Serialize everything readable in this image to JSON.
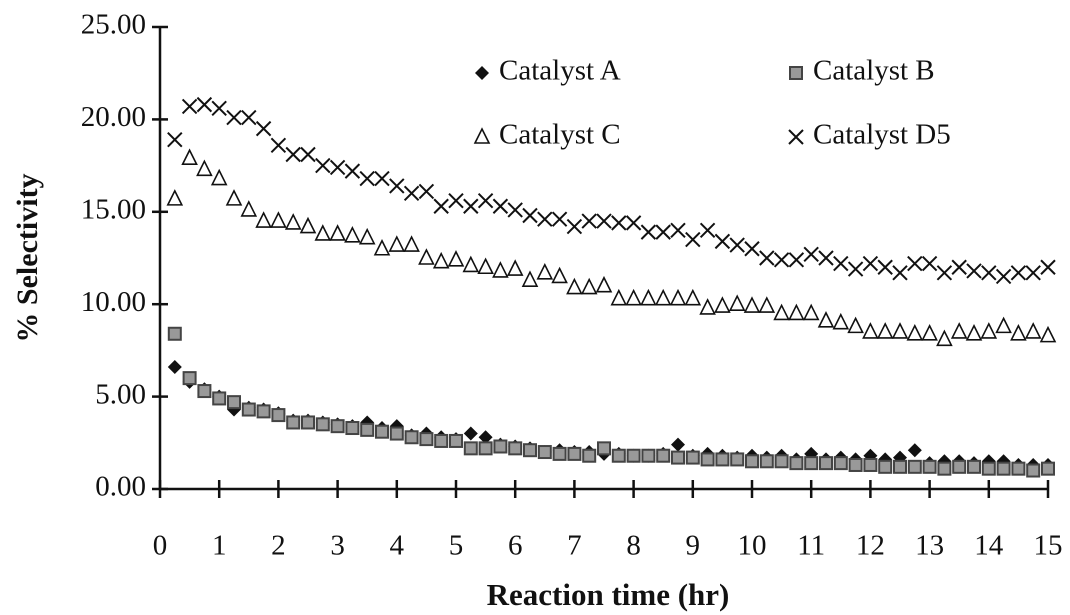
{
  "chart_data": {
    "type": "scatter",
    "x_label": "Reaction time (hr)",
    "y_label": "% Selectivity",
    "x": [
      0.25,
      0.5,
      0.75,
      1,
      1.25,
      1.5,
      1.75,
      2,
      2.25,
      2.5,
      2.75,
      3,
      3.25,
      3.5,
      3.75,
      4,
      4.25,
      4.5,
      4.75,
      5,
      5.25,
      5.5,
      5.75,
      6,
      6.25,
      6.5,
      6.75,
      7,
      7.25,
      7.5,
      7.75,
      8,
      8.25,
      8.5,
      8.75,
      9,
      9.25,
      9.5,
      9.75,
      10,
      10.25,
      10.5,
      10.75,
      11,
      11.25,
      11.5,
      11.75,
      12,
      12.25,
      12.5,
      12.75,
      13,
      13.25,
      13.5,
      13.75,
      14,
      14.25,
      14.5,
      14.75,
      15
    ],
    "series": [
      {
        "name": "Catalyst A",
        "color": "#111111",
        "marker": "diamond",
        "values": [
          6.6,
          5.8,
          5.4,
          5.0,
          4.3,
          4.4,
          4.3,
          4.1,
          3.7,
          3.7,
          3.6,
          3.5,
          3.4,
          3.6,
          3.3,
          3.4,
          2.9,
          3.0,
          2.8,
          2.7,
          3.0,
          2.8,
          2.4,
          2.3,
          2.2,
          2.0,
          2.1,
          2.0,
          2.0,
          1.9,
          1.9,
          1.8,
          1.8,
          1.9,
          2.4,
          1.8,
          1.9,
          1.8,
          1.7,
          1.8,
          1.7,
          1.8,
          1.6,
          1.9,
          1.6,
          1.7,
          1.6,
          1.8,
          1.6,
          1.7,
          2.1,
          1.4,
          1.5,
          1.5,
          1.4,
          1.5,
          1.5,
          1.3,
          1.3,
          1.3
        ]
      },
      {
        "name": "Catalyst B",
        "color": "#444444",
        "marker": "square",
        "values": [
          8.4,
          6.0,
          5.3,
          4.9,
          4.7,
          4.3,
          4.2,
          4.0,
          3.6,
          3.6,
          3.5,
          3.4,
          3.3,
          3.2,
          3.1,
          3.0,
          2.8,
          2.7,
          2.6,
          2.6,
          2.2,
          2.2,
          2.3,
          2.2,
          2.1,
          2.0,
          1.9,
          1.9,
          1.8,
          2.2,
          1.8,
          1.8,
          1.8,
          1.8,
          1.7,
          1.7,
          1.6,
          1.6,
          1.6,
          1.5,
          1.5,
          1.5,
          1.4,
          1.4,
          1.4,
          1.4,
          1.3,
          1.3,
          1.2,
          1.2,
          1.2,
          1.2,
          1.1,
          1.2,
          1.2,
          1.1,
          1.1,
          1.1,
          1.0,
          1.1
        ]
      },
      {
        "name": "Catalyst C",
        "color": "#111111",
        "marker": "triangle",
        "values": [
          15.7,
          17.9,
          17.3,
          16.8,
          15.7,
          15.1,
          14.5,
          14.5,
          14.4,
          14.2,
          13.8,
          13.8,
          13.7,
          13.6,
          13.0,
          13.2,
          13.2,
          12.5,
          12.3,
          12.4,
          12.1,
          12.0,
          11.8,
          11.9,
          11.3,
          11.7,
          11.5,
          10.9,
          10.9,
          11.0,
          10.3,
          10.3,
          10.3,
          10.3,
          10.3,
          10.3,
          9.8,
          9.9,
          10.0,
          9.9,
          9.9,
          9.5,
          9.5,
          9.5,
          9.1,
          9.0,
          8.8,
          8.5,
          8.5,
          8.5,
          8.4,
          8.4,
          8.1,
          8.5,
          8.4,
          8.5,
          8.8,
          8.4,
          8.5,
          8.3
        ]
      },
      {
        "name": "Catalyst D5",
        "color": "#111111",
        "marker": "cross",
        "values": [
          18.9,
          20.7,
          20.8,
          20.6,
          20.1,
          20.1,
          19.5,
          18.6,
          18.1,
          18.1,
          17.5,
          17.4,
          17.2,
          16.8,
          16.8,
          16.4,
          16.0,
          16.1,
          15.3,
          15.6,
          15.3,
          15.6,
          15.3,
          15.1,
          14.8,
          14.6,
          14.6,
          14.2,
          14.5,
          14.5,
          14.4,
          14.4,
          13.9,
          13.9,
          14.0,
          13.5,
          14.0,
          13.4,
          13.2,
          13.0,
          12.5,
          12.4,
          12.4,
          12.7,
          12.5,
          12.2,
          11.9,
          12.2,
          12.0,
          11.7,
          12.2,
          12.2,
          11.7,
          12.0,
          11.8,
          11.7,
          11.5,
          11.7,
          11.7,
          12.0
        ]
      }
    ],
    "xlim": [
      0,
      15
    ],
    "xticks": [
      0,
      1,
      2,
      3,
      4,
      5,
      6,
      7,
      8,
      9,
      10,
      11,
      12,
      13,
      14,
      15
    ],
    "ylim": [
      0,
      25
    ],
    "yticks": [
      {
        "value": 0,
        "label": "0.00"
      },
      {
        "value": 5,
        "label": "5.00"
      },
      {
        "value": 10,
        "label": "10.00"
      },
      {
        "value": 15,
        "label": "15.00"
      },
      {
        "value": 20,
        "label": "20.00"
      },
      {
        "value": 25,
        "label": "25.00"
      }
    ],
    "grid": false,
    "legend": "top-right"
  }
}
